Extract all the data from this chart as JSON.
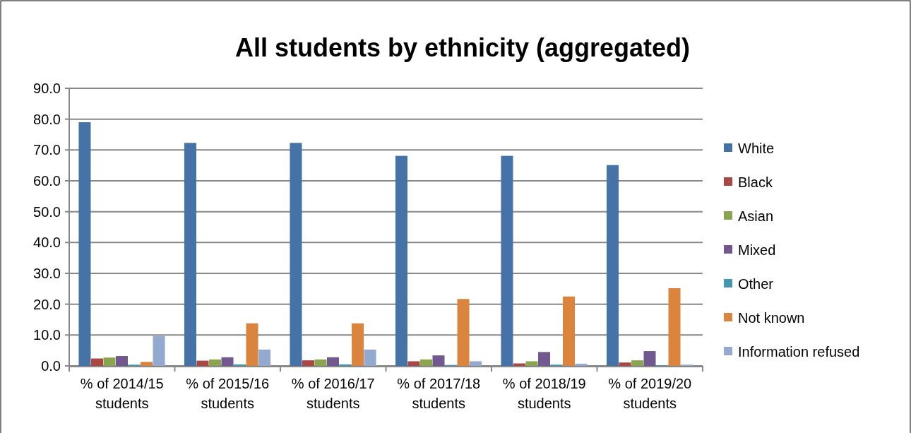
{
  "chart_data": {
    "type": "bar",
    "title": "All students by ethnicity (aggregated)",
    "categories": [
      "% of 2014/15 students",
      "% of 2015/16 students",
      "% of 2016/17 students",
      "% of 2017/18 students",
      "% of 2018/19 students",
      "% of 2019/20 students"
    ],
    "series": [
      {
        "name": "White",
        "color": "#4572a7",
        "values": [
          79.0,
          72.3,
          72.3,
          68.1,
          68.1,
          65.1
        ]
      },
      {
        "name": "Black",
        "color": "#aa4643",
        "values": [
          2.4,
          1.7,
          1.8,
          1.5,
          0.8,
          1.1
        ]
      },
      {
        "name": "Asian",
        "color": "#89a54e",
        "values": [
          2.7,
          2.1,
          2.1,
          2.1,
          1.5,
          1.8
        ]
      },
      {
        "name": "Mixed",
        "color": "#71588f",
        "values": [
          3.2,
          2.8,
          2.8,
          3.4,
          4.5,
          4.8
        ]
      },
      {
        "name": "Other",
        "color": "#4198af",
        "values": [
          0.4,
          0.5,
          0.5,
          0.3,
          0.4,
          0.2
        ]
      },
      {
        "name": "Not known",
        "color": "#db843d",
        "values": [
          1.3,
          13.8,
          13.8,
          21.7,
          22.5,
          25.2
        ]
      },
      {
        "name": "Information refused",
        "color": "#93a9cf",
        "values": [
          9.7,
          5.3,
          5.3,
          1.5,
          0.7,
          0.4
        ]
      }
    ],
    "ylim": [
      0,
      90
    ],
    "yticks": [
      {
        "value": 0,
        "label": "0.0"
      },
      {
        "value": 10,
        "label": "10.0"
      },
      {
        "value": 20,
        "label": "20.0"
      },
      {
        "value": 30,
        "label": "30.0"
      },
      {
        "value": 40,
        "label": "40.0"
      },
      {
        "value": 50,
        "label": "50.0"
      },
      {
        "value": 60,
        "label": "60.0"
      },
      {
        "value": 70,
        "label": "70.0"
      },
      {
        "value": 80,
        "label": "80.0"
      },
      {
        "value": 90,
        "label": "90.0"
      }
    ],
    "grid": "y",
    "legend": "right"
  }
}
